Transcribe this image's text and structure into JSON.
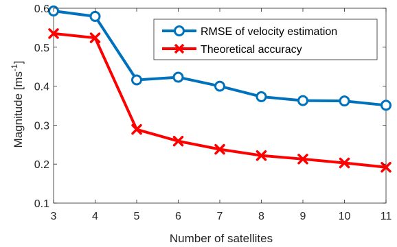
{
  "chart_data": {
    "type": "line",
    "xlabel": "Number of satellites",
    "ylabel": "Magnitude [ms",
    "ylabel_sup": "-1",
    "ylabel_tail": "]",
    "xlim": [
      3,
      11
    ],
    "ylim": [
      0.1,
      0.6
    ],
    "x": [
      3,
      4,
      5,
      6,
      7,
      8,
      9,
      10,
      11
    ],
    "x_ticks": [
      "3",
      "4",
      "5",
      "6",
      "7",
      "8",
      "9",
      "10",
      "11"
    ],
    "y_ticks": [
      "0.1",
      "0.2",
      "0.3",
      "0.4",
      "0.5",
      "0.6"
    ],
    "grid": false,
    "legend_position": "top-right",
    "series": [
      {
        "name": "RMSE of velocity estimation",
        "color": "#0072BD",
        "marker": "circle",
        "values": [
          0.593,
          0.579,
          0.416,
          0.423,
          0.4,
          0.373,
          0.363,
          0.362,
          0.351
        ]
      },
      {
        "name": "Theoretical accuracy",
        "color": "#FF0000",
        "marker": "x",
        "values": [
          0.535,
          0.524,
          0.289,
          0.259,
          0.238,
          0.222,
          0.213,
          0.203,
          0.192
        ]
      }
    ]
  }
}
